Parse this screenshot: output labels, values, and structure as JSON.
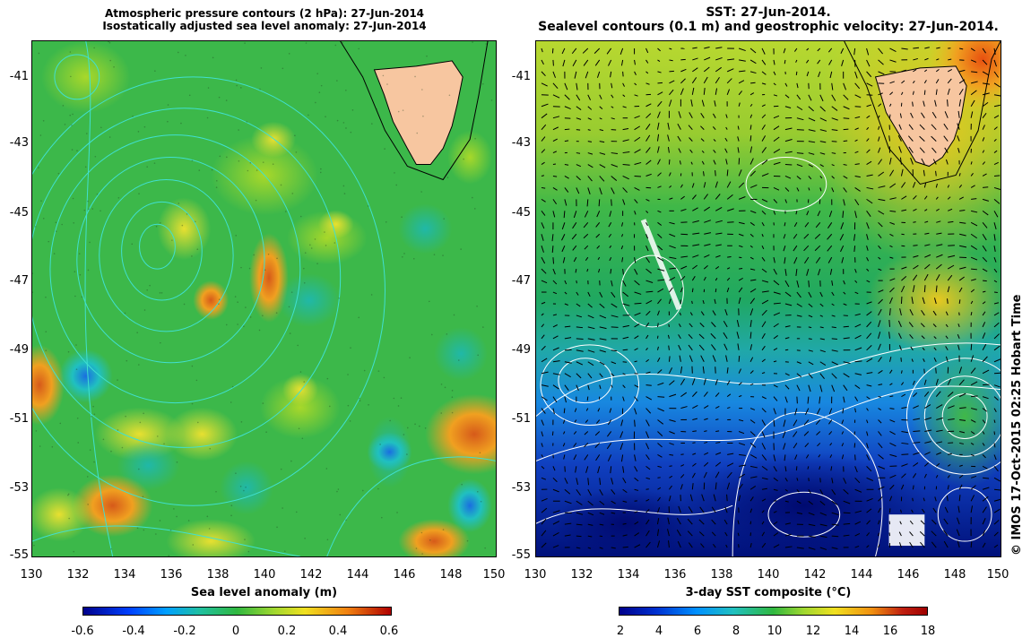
{
  "left_panel": {
    "title_line1": "Atmospheric pressure contours (2 hPa): 27-Jun-2014",
    "title_line2": "Isostatically adjusted sea level anomaly: 27-Jun-2014",
    "y_labels": [
      "-41",
      "-43",
      "-45",
      "-47",
      "-49",
      "-51",
      "-53",
      "-55"
    ],
    "x_labels": [
      "130",
      "132",
      "134",
      "136",
      "138",
      "140",
      "142",
      "144",
      "146",
      "148",
      "150"
    ],
    "colorbar_label": "Sea level anomaly (m)",
    "colorbar_ticks": [
      "-0.6",
      "-0.4",
      "-0.2",
      "0",
      "0.2",
      "0.4",
      "0.6"
    ],
    "colors": {
      "low": "#00008b",
      "mid": "#22b14c",
      "high": "#b22222",
      "land": "#f5c6a0",
      "contour": "#40e0d0"
    }
  },
  "right_panel": {
    "title_line1": "SST: 27-Jun-2014.",
    "title_line2": "Sealevel contours (0.1 m) and geostrophic velocity: 27-Jun-2014.",
    "y_labels": [
      "-41",
      "-43",
      "-45",
      "-47",
      "-49",
      "-51",
      "-53",
      "-55"
    ],
    "x_labels": [
      "130",
      "132",
      "134",
      "136",
      "138",
      "140",
      "142",
      "144",
      "146",
      "148",
      "150"
    ],
    "colorbar_label": "3-day SST composite (°C)",
    "colorbar_ticks": [
      "2",
      "4",
      "6",
      "8",
      "10",
      "12",
      "14",
      "16",
      "18"
    ],
    "colors": {
      "cold": "#00008b",
      "mid": "#22b14c",
      "warm": "#b22222",
      "land": "#f5c6a0",
      "contour": "#ffffff"
    }
  },
  "credit": "© IMOS 17-Oct-2015 02:25 Hobart Time"
}
